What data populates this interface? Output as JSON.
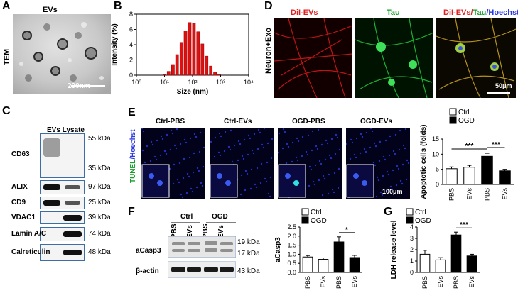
{
  "panels": {
    "A": {
      "letter": "A",
      "title": "EVs",
      "side_label": "TEM",
      "scalebar": "200nm"
    },
    "B": {
      "letter": "B"
    },
    "C": {
      "letter": "C",
      "header": "EVs Lysate",
      "rows": [
        {
          "name": "CD63",
          "kda": [
            "55 kDa",
            "35 kDa"
          ]
        },
        {
          "name": "ALIX",
          "kda": [
            "97 kDa"
          ]
        },
        {
          "name": "CD9",
          "kda": [
            "25 kDa"
          ]
        },
        {
          "name": "VDAC1",
          "kda": [
            "39 kDa"
          ]
        },
        {
          "name": "Lamin A/C",
          "kda": [
            "74 kDa"
          ]
        },
        {
          "name": "Calreticulin",
          "kda": [
            "48 kDa"
          ]
        }
      ]
    },
    "D": {
      "letter": "D",
      "side_label": "Neuron+Exo",
      "ch1": "DiI-EVs",
      "ch2": "Tau",
      "ch3_a": "DiI-EVs/",
      "ch3_b": "Tau",
      "ch3_c": "/Hoechst",
      "scalebar": "50μm"
    },
    "E": {
      "letter": "E",
      "side_a": "TUNEL",
      "side_b": "/Hoechst",
      "images": [
        "Ctrl-PBS",
        "Ctrl-EVs",
        "OGD-PBS",
        "OGD-EVs"
      ],
      "scalebar": "100μm"
    },
    "F": {
      "letter": "F",
      "group1": "Ctrl",
      "group2": "OGD",
      "lanes": [
        "PBS",
        "EVs",
        "PBS",
        "EVs"
      ],
      "row1": "aCasp3",
      "row2": "β-actin",
      "kda": [
        "19 kDa",
        "17 kDa",
        "43 kDa"
      ]
    },
    "G": {
      "letter": "G"
    }
  },
  "legend": {
    "ctrl": "Ctrl",
    "ogd": "OGD"
  },
  "chart_data": [
    {
      "type": "area",
      "panel": "B",
      "xlabel": "Size (nm)",
      "ylabel": "Intensity (%)",
      "xscale": "log",
      "xticks": [
        "10⁰",
        "10¹",
        "10²",
        "10³",
        "10⁴"
      ],
      "yticks": [
        "0",
        "2",
        "4",
        "6",
        "8"
      ],
      "ylim": [
        0,
        8
      ],
      "x": [
        10,
        14,
        20,
        28,
        40,
        56,
        79,
        112,
        158,
        224,
        316,
        447,
        631,
        891
      ],
      "values": [
        0.1,
        0.5,
        1.4,
        2.7,
        4.3,
        5.8,
        6.9,
        6.8,
        5.7,
        4.1,
        2.5,
        1.2,
        0.4,
        0.1
      ],
      "color": "#e01010"
    },
    {
      "type": "bar",
      "panel": "E",
      "ylabel": "Apoptotic cells (folds)",
      "categories": [
        "PBS",
        "EVs",
        "PBS",
        "EVs"
      ],
      "groups": [
        "Ctrl",
        "Ctrl",
        "OGD",
        "OGD"
      ],
      "values": [
        5.2,
        5.7,
        9.3,
        4.5
      ],
      "errors": [
        0.6,
        0.6,
        1.0,
        0.5
      ],
      "ylim": [
        0,
        15
      ],
      "yticks": [
        "0",
        "5",
        "10",
        "15"
      ],
      "significance": [
        {
          "label": "***",
          "from": 0,
          "to": 2
        },
        {
          "label": "***",
          "from": 2,
          "to": 3
        }
      ]
    },
    {
      "type": "bar",
      "panel": "F",
      "ylabel": "aCasp3",
      "categories": [
        "PBS",
        "EVs",
        "PBS",
        "EVs"
      ],
      "groups": [
        "Ctrl",
        "Ctrl",
        "OGD",
        "OGD"
      ],
      "values": [
        0.85,
        0.72,
        1.68,
        0.82
      ],
      "errors": [
        0.08,
        0.08,
        0.28,
        0.12
      ],
      "ylim": [
        0,
        2.5
      ],
      "yticks": [
        "0.0",
        "0.5",
        "1.0",
        "1.5",
        "2.0",
        "2.5"
      ],
      "significance": [
        {
          "label": "*",
          "from": 2,
          "to": 3
        }
      ]
    },
    {
      "type": "bar",
      "panel": "G",
      "ylabel": "LDH release level",
      "categories": [
        "PBS",
        "EVs",
        "PBS",
        "EVs"
      ],
      "groups": [
        "Ctrl",
        "Ctrl",
        "OGD",
        "OGD"
      ],
      "values": [
        1.6,
        1.1,
        3.3,
        1.45
      ],
      "errors": [
        0.35,
        0.2,
        0.25,
        0.15
      ],
      "ylim": [
        0,
        4
      ],
      "yticks": [
        "0",
        "1",
        "2",
        "3",
        "4"
      ],
      "significance": [
        {
          "label": "***",
          "from": 2,
          "to": 3
        }
      ]
    }
  ]
}
